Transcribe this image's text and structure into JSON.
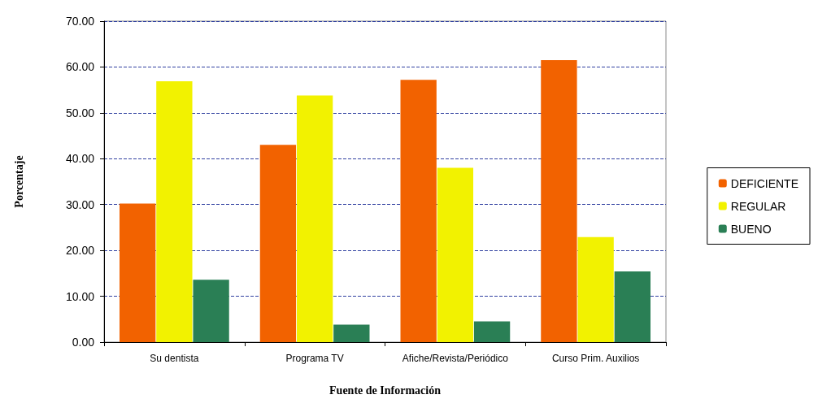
{
  "chart_data": {
    "type": "bar",
    "xlabel": "Fuente de Información",
    "ylabel": "Porcentaje",
    "categories": [
      "Su dentista",
      "Programa TV",
      "Afiche/Revista/Periódico",
      "Curso Prim. Auxilios"
    ],
    "series": [
      {
        "name": "DEFICIENTE",
        "color": "#f26200",
        "values": [
          30.2,
          43.0,
          57.2,
          61.5
        ]
      },
      {
        "name": "REGULAR",
        "color": "#f2f200",
        "values": [
          56.9,
          53.8,
          38.0,
          22.9
        ]
      },
      {
        "name": "BUENO",
        "color": "#2a7f55",
        "values": [
          13.6,
          3.8,
          4.5,
          15.4
        ]
      }
    ],
    "ylim": [
      0,
      70
    ],
    "yticks": [
      {
        "value": 0,
        "label": "0.00"
      },
      {
        "value": 10,
        "label": "10.00"
      },
      {
        "value": 20,
        "label": "20.00"
      },
      {
        "value": 30,
        "label": "30.00"
      },
      {
        "value": 40,
        "label": "40.00"
      },
      {
        "value": 50,
        "label": "50.00"
      },
      {
        "value": 60,
        "label": "60.00"
      },
      {
        "value": 70,
        "label": "70.00"
      }
    ],
    "grid": "y",
    "legend": "right"
  }
}
